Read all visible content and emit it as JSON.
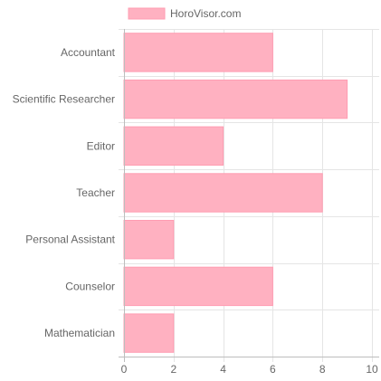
{
  "chart_data": {
    "type": "bar",
    "orientation": "horizontal",
    "categories": [
      "Accountant",
      "Scientific Researcher",
      "Editor",
      "Teacher",
      "Personal Assistant",
      "Counselor",
      "Mathematician"
    ],
    "series": [
      {
        "name": "HoroVisor.com",
        "values": [
          6,
          9,
          4,
          8,
          2,
          6,
          2
        ],
        "color": "#ffb1c1",
        "border_color": "#ff9db2"
      }
    ],
    "xlim": [
      0,
      10
    ],
    "x_ticks": [
      0,
      2,
      4,
      6,
      8,
      10
    ],
    "grid": true,
    "legend_position": "top"
  }
}
